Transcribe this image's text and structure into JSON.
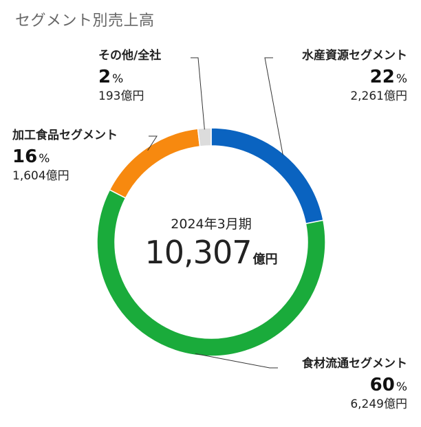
{
  "title": "セグメント別売上高",
  "center": {
    "period": "2024年3月期",
    "total": "10,307",
    "total_unit": "億円"
  },
  "chart_data": {
    "type": "pie",
    "title": "セグメント別売上高",
    "subtitle": "2024年3月期",
    "total": 10307,
    "total_unit": "億円",
    "start": "12 o'clock",
    "direction": "clockwise",
    "percent_unit": "%",
    "slices": [
      {
        "label": "水産資源セグメント",
        "percent": 22,
        "percent_text": "22",
        "amount": 2261,
        "amount_text": "2,261億円",
        "color": "#0a63c0"
      },
      {
        "label": "食材流通セグメント",
        "percent": 60,
        "percent_text": "60",
        "amount": 6249,
        "amount_text": "6,249億円",
        "color": "#1aab3b"
      },
      {
        "label": "加工食品セグメント",
        "percent": 16,
        "percent_text": "16",
        "amount": 1604,
        "amount_text": "1,604億円",
        "color": "#f7890f"
      },
      {
        "label": "その他/全社",
        "percent": 2,
        "percent_text": "2",
        "amount": 193,
        "amount_text": "193億円",
        "color": "#dcdcdc"
      }
    ]
  }
}
